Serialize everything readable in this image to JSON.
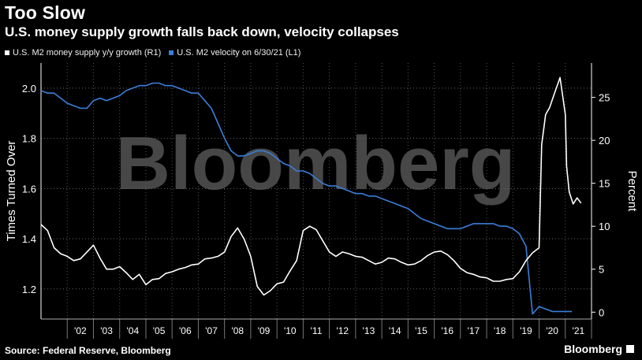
{
  "header": {
    "title": "Too Slow",
    "subtitle": "U.S. money supply growth falls back down, velocity collapses"
  },
  "watermark": "Bloomberg",
  "footer": {
    "source": "Source: Federal Reserve, Bloomberg",
    "brand": "Bloomberg"
  },
  "colors": {
    "background": "#000000",
    "m2_growth": "#ffffff",
    "m2_velocity": "#3a7fd9",
    "grid": "#555555"
  },
  "chart_data": {
    "type": "line",
    "legend": [
      "U.S. M2 money supply y/y growth (R1)",
      "U.S. M2 velocity on 6/30/21 (L1)"
    ],
    "legend_position": "top-left",
    "ylabel_left": "Times Turned Over",
    "ylabel_right": "Percent",
    "ylim_left": [
      1.08,
      2.1
    ],
    "ylim_right": [
      -0.8,
      29
    ],
    "yticks_left": [
      "1.2",
      "1.4",
      "1.6",
      "1.8",
      "2.0"
    ],
    "yticks_right": [
      "0",
      "5",
      "10",
      "15",
      "20",
      "25"
    ],
    "xticks": [
      "'02",
      "'03",
      "'04",
      "'05",
      "'06",
      "'07",
      "'08",
      "'09",
      "'10",
      "'11",
      "'12",
      "'13",
      "'14",
      "'15",
      "'16",
      "'17",
      "'18",
      "'19",
      "'20",
      "'21"
    ],
    "grid": true,
    "series": [
      {
        "name": "U.S. M2 velocity on 6/30/21 (L1)",
        "axis": "left",
        "x": [
          2001.0,
          2001.25,
          2001.5,
          2001.75,
          2002.0,
          2002.25,
          2002.5,
          2002.75,
          2003.0,
          2003.25,
          2003.5,
          2003.75,
          2004.0,
          2004.25,
          2004.5,
          2004.75,
          2005.0,
          2005.25,
          2005.5,
          2005.75,
          2006.0,
          2006.25,
          2006.5,
          2006.75,
          2007.0,
          2007.25,
          2007.5,
          2007.75,
          2008.0,
          2008.25,
          2008.5,
          2008.75,
          2009.0,
          2009.25,
          2009.5,
          2009.75,
          2010.0,
          2010.25,
          2010.5,
          2010.75,
          2011.0,
          2011.25,
          2011.5,
          2011.75,
          2012.0,
          2012.25,
          2012.5,
          2012.75,
          2013.0,
          2013.25,
          2013.5,
          2013.75,
          2014.0,
          2014.25,
          2014.5,
          2014.75,
          2015.0,
          2015.25,
          2015.5,
          2015.75,
          2016.0,
          2016.25,
          2016.5,
          2016.75,
          2017.0,
          2017.25,
          2017.5,
          2017.75,
          2018.0,
          2018.25,
          2018.5,
          2018.75,
          2019.0,
          2019.25,
          2019.5,
          2019.75,
          2020.0,
          2020.25,
          2020.5,
          2020.75,
          2021.0,
          2021.25
        ],
        "values": [
          1.99,
          1.98,
          1.98,
          1.96,
          1.94,
          1.93,
          1.92,
          1.92,
          1.95,
          1.96,
          1.95,
          1.96,
          1.97,
          1.99,
          2.0,
          2.01,
          2.01,
          2.02,
          2.02,
          2.01,
          2.01,
          2.0,
          1.99,
          1.98,
          1.98,
          1.95,
          1.92,
          1.86,
          1.8,
          1.75,
          1.73,
          1.73,
          1.74,
          1.75,
          1.75,
          1.74,
          1.72,
          1.7,
          1.69,
          1.67,
          1.67,
          1.66,
          1.64,
          1.62,
          1.61,
          1.61,
          1.6,
          1.59,
          1.58,
          1.58,
          1.57,
          1.57,
          1.56,
          1.55,
          1.54,
          1.53,
          1.52,
          1.5,
          1.48,
          1.47,
          1.46,
          1.45,
          1.44,
          1.44,
          1.44,
          1.45,
          1.46,
          1.46,
          1.46,
          1.46,
          1.45,
          1.45,
          1.44,
          1.42,
          1.37,
          1.1,
          1.13,
          1.12,
          1.11,
          1.11,
          1.11,
          1.11
        ]
      },
      {
        "name": "U.S. M2 money supply y/y growth (R1)",
        "axis": "right",
        "x": [
          2001.0,
          2001.25,
          2001.5,
          2001.75,
          2002.0,
          2002.25,
          2002.5,
          2002.75,
          2003.0,
          2003.25,
          2003.5,
          2003.75,
          2004.0,
          2004.25,
          2004.5,
          2004.75,
          2005.0,
          2005.25,
          2005.5,
          2005.75,
          2006.0,
          2006.25,
          2006.5,
          2006.75,
          2007.0,
          2007.25,
          2007.5,
          2007.75,
          2008.0,
          2008.25,
          2008.5,
          2008.75,
          2009.0,
          2009.25,
          2009.5,
          2009.75,
          2010.0,
          2010.25,
          2010.5,
          2010.75,
          2011.0,
          2011.25,
          2011.5,
          2011.75,
          2012.0,
          2012.25,
          2012.5,
          2012.75,
          2013.0,
          2013.25,
          2013.5,
          2013.75,
          2014.0,
          2014.25,
          2014.5,
          2014.75,
          2015.0,
          2015.25,
          2015.5,
          2015.75,
          2016.0,
          2016.25,
          2016.5,
          2016.75,
          2017.0,
          2017.25,
          2017.5,
          2017.75,
          2018.0,
          2018.25,
          2018.5,
          2018.75,
          2019.0,
          2019.25,
          2019.5,
          2019.75,
          2020.0,
          2020.1,
          2020.25,
          2020.4,
          2020.6,
          2020.8,
          2021.0,
          2021.05,
          2021.15,
          2021.3,
          2021.45,
          2021.6
        ],
        "values": [
          10.2,
          9.5,
          7.5,
          6.8,
          6.5,
          6.0,
          6.2,
          7.0,
          7.8,
          6.3,
          5.0,
          5.0,
          5.3,
          4.6,
          3.8,
          4.4,
          3.2,
          3.8,
          3.9,
          4.5,
          4.7,
          5.0,
          5.2,
          5.5,
          5.6,
          6.2,
          6.3,
          6.5,
          7.0,
          8.8,
          9.8,
          8.5,
          6.5,
          3.0,
          2.0,
          2.5,
          3.3,
          3.5,
          4.8,
          6.0,
          9.5,
          10.0,
          9.6,
          8.3,
          7.0,
          6.5,
          7.0,
          6.8,
          6.5,
          6.4,
          6.0,
          5.6,
          5.8,
          6.3,
          6.2,
          5.8,
          5.5,
          5.6,
          6.0,
          6.6,
          7.0,
          7.1,
          6.7,
          6.0,
          5.1,
          4.6,
          4.4,
          4.1,
          4.0,
          3.6,
          3.6,
          3.8,
          3.9,
          4.7,
          6.0,
          6.9,
          7.5,
          19.5,
          23.0,
          23.8,
          25.6,
          27.3,
          23.0,
          17.0,
          14.0,
          12.6,
          13.3,
          12.7
        ]
      }
    ]
  }
}
